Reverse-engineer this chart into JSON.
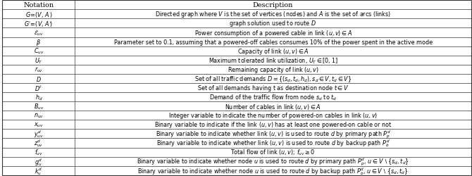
{
  "col_split": 0.155,
  "bg_color": "#ffffff",
  "line_color": "#333333",
  "text_color": "#000000",
  "header_fontsize": 7.0,
  "fontsize": 5.8,
  "figsize": [
    6.7,
    2.51
  ],
  "dpi": 100,
  "header": [
    "Notation",
    "Description"
  ],
  "notation_render": [
    "$G\\!=\\!(V,\\,A\\,)$",
    "$G'\\!=\\!(V,\\,A'\\!)$",
    "$\\mathcal{E}_{uv}$",
    "$\\beta$",
    "$C_{uv}$",
    "$U_T$",
    "$r_{uv}$",
    "$D$",
    "$D^t$",
    "$h_d$",
    "$B_{uv}$",
    "$n_{uv}$",
    "$x_{uv}$",
    "$y_{uv}^d$",
    "$z_{uv}^d$",
    "$f_{uv}$",
    "$g_u^d$",
    "$k_u^d$"
  ],
  "description_render": [
    "Directed graph where $V$ is the set of vertices (nodes) and $A$ is the set of arcs (links)",
    "graph solution used to route $D$",
    "Power consumption of a powered cable in link $(u, v) \\in A$",
    "Parameter set to 0.1, assuming that a powered-off cables consumes 10% of the power spent in the active mode",
    "Capacity of link $(u, v) \\in A$",
    "Maximum tolerated link utilization, $U_T \\in [0, 1]$",
    "Remaining capacity of link $(u, v)$",
    "Set of all traffic demands $D = \\{(s_d, t_d, h_d), s_d \\in V, t_d \\in V\\}$",
    "Set of all demands having t as destination node $t \\in V$",
    "Demand of the traffic flow from node $s_d$ to $t_d$",
    "Number of cables in link $(u, v) \\in A$",
    "Integer variable to indicate the number of powered-on cables in link $(u, v)$",
    "Binary variable to indicate if the link $(u, v)$ has at least one powered-on cable or not",
    "Binary variable to indicate whether link $(u, v)$ is used to route $d$ by primary path $P_p^d$",
    "Binary variable to indicate whether link $(u, v)$ is used to route $d$ by backup path $P_b^d$",
    "Total flow of link $(u, v)$; $f_{uv} \\geq 0$",
    "Binary variable to indicate whether node $u$ is used to route $d$ by primary path $P_p^d$, $u \\in V \\setminus \\{s_d, t_d\\}$",
    "Binary variable to indicate whether node $u$ is used to route $d$ by backup path $P_b^d$, $u \\in V \\setminus \\{s_d, t_d\\}$"
  ]
}
